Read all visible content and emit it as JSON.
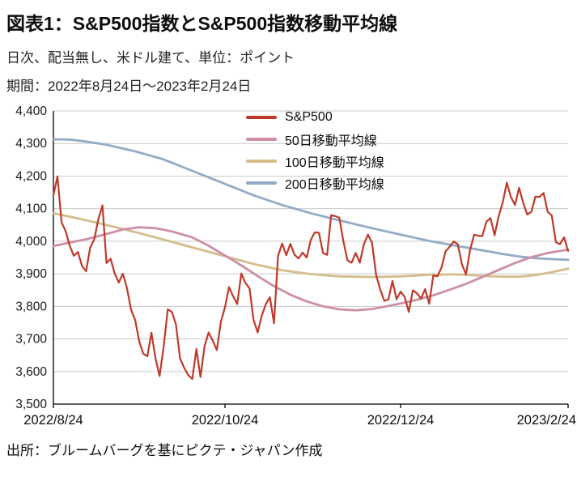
{
  "header": {
    "title": "図表1：S&P500指数とS&P500指数移動平均線",
    "subtitle": "日次、配当無し、米ドル建て、単位：ポイント",
    "period": "期間：2022年8月24日～2023年2月24日"
  },
  "footer": {
    "source": "出所：ブルームバーグを基にピクテ・ジャパン作成"
  },
  "chart_data": {
    "type": "line",
    "title": "図表1：S&P500指数とS&P500指数移動平均線",
    "xlabel": "",
    "ylabel": "",
    "ylim": [
      3500,
      4400
    ],
    "yticks": [
      3500,
      3600,
      3700,
      3800,
      3900,
      4000,
      4100,
      4200,
      4300,
      4400
    ],
    "ytick_labels": [
      "3,500",
      "3,600",
      "3,700",
      "3,800",
      "3,900",
      "4,000",
      "4,100",
      "4,200",
      "4,300",
      "4,400"
    ],
    "x_unit": "trading-day-index from 2022/8/24",
    "x_range": [
      0,
      126
    ],
    "xticks": [
      {
        "pos": 0,
        "label": "2022/8/24"
      },
      {
        "pos": 42,
        "label": "2022/10/24"
      },
      {
        "pos": 85,
        "label": "2022/12/24"
      },
      {
        "pos": 126,
        "label": "2023/2/24"
      }
    ],
    "grid": "horizontal",
    "grid_color": "#c9c9c9",
    "axis_color": "#000000",
    "legend_position": "inside-top-center",
    "series": [
      {
        "id": "sp500",
        "name": "S&P500",
        "color": "#c0392b",
        "width": 2.2,
        "values": [
          4141,
          4199,
          4058,
          4031,
          3986,
          3955,
          3967,
          3924,
          3908,
          3980,
          4006,
          4067,
          4110,
          3933,
          3946,
          3901,
          3873,
          3900,
          3856,
          3790,
          3758,
          3693,
          3655,
          3647,
          3719,
          3640,
          3586,
          3678,
          3791,
          3783,
          3745,
          3640,
          3612,
          3589,
          3577,
          3669,
          3583,
          3678,
          3720,
          3695,
          3666,
          3753,
          3797,
          3859,
          3831,
          3807,
          3901,
          3872,
          3856,
          3759,
          3720,
          3771,
          3807,
          3828,
          3748,
          3956,
          3993,
          3957,
          3992,
          3959,
          3947,
          3965,
          3950,
          4004,
          4027,
          4026,
          3964,
          3958,
          4080,
          4077,
          4072,
          3999,
          3941,
          3934,
          3964,
          3934,
          3990,
          4020,
          3995,
          3896,
          3852,
          3817,
          3821,
          3878,
          3822,
          3845,
          3829,
          3783,
          3849,
          3840,
          3824,
          3853,
          3808,
          3895,
          3892,
          3919,
          3969,
          3983,
          3999,
          3991,
          3929,
          3898,
          3973,
          4020,
          4017,
          4016,
          4060,
          4071,
          4018,
          4077,
          4119,
          4180,
          4136,
          4111,
          4164,
          4118,
          4082,
          4090,
          4137,
          4136,
          4148,
          4090,
          4079,
          3997,
          3991,
          4012,
          3970
        ]
      },
      {
        "id": "ma50",
        "name": "50日移動平均線",
        "color": "#cc8fa5",
        "width": 2.8,
        "points": [
          [
            0,
            3985
          ],
          [
            4,
            3996
          ],
          [
            8,
            4006
          ],
          [
            13,
            4022
          ],
          [
            17,
            4036
          ],
          [
            21,
            4043
          ],
          [
            25,
            4040
          ],
          [
            29,
            4030
          ],
          [
            34,
            4012
          ],
          [
            38,
            3986
          ],
          [
            42,
            3956
          ],
          [
            46,
            3926
          ],
          [
            50,
            3893
          ],
          [
            54,
            3862
          ],
          [
            58,
            3836
          ],
          [
            62,
            3815
          ],
          [
            66,
            3800
          ],
          [
            70,
            3791
          ],
          [
            74,
            3788
          ],
          [
            78,
            3792
          ],
          [
            82,
            3801
          ],
          [
            85,
            3809
          ],
          [
            89,
            3820
          ],
          [
            93,
            3834
          ],
          [
            97,
            3851
          ],
          [
            101,
            3869
          ],
          [
            105,
            3890
          ],
          [
            109,
            3912
          ],
          [
            113,
            3933
          ],
          [
            117,
            3951
          ],
          [
            121,
            3964
          ],
          [
            126,
            3974
          ]
        ]
      },
      {
        "id": "ma100",
        "name": "100日移動平均線",
        "color": "#d4bd8c",
        "width": 2.8,
        "points": [
          [
            0,
            4086
          ],
          [
            6,
            4070
          ],
          [
            13,
            4050
          ],
          [
            20,
            4028
          ],
          [
            27,
            4005
          ],
          [
            34,
            3981
          ],
          [
            42,
            3954
          ],
          [
            49,
            3930
          ],
          [
            56,
            3911
          ],
          [
            63,
            3899
          ],
          [
            70,
            3892
          ],
          [
            78,
            3890
          ],
          [
            85,
            3892
          ],
          [
            92,
            3897
          ],
          [
            99,
            3898
          ],
          [
            106,
            3893
          ],
          [
            110,
            3891
          ],
          [
            114,
            3891
          ],
          [
            118,
            3896
          ],
          [
            122,
            3905
          ],
          [
            126,
            3916
          ]
        ]
      },
      {
        "id": "ma200",
        "name": "200日移動平均線",
        "color": "#93abc5",
        "width": 2.8,
        "points": [
          [
            0,
            4313
          ],
          [
            4,
            4312
          ],
          [
            8,
            4306
          ],
          [
            13,
            4296
          ],
          [
            20,
            4276
          ],
          [
            27,
            4251
          ],
          [
            34,
            4216
          ],
          [
            42,
            4176
          ],
          [
            49,
            4141
          ],
          [
            56,
            4111
          ],
          [
            63,
            4086
          ],
          [
            70,
            4064
          ],
          [
            78,
            4040
          ],
          [
            85,
            4020
          ],
          [
            92,
            4001
          ],
          [
            99,
            3985
          ],
          [
            106,
            3970
          ],
          [
            110,
            3961
          ],
          [
            114,
            3953
          ],
          [
            118,
            3948
          ],
          [
            122,
            3945
          ],
          [
            126,
            3943
          ]
        ]
      }
    ]
  }
}
